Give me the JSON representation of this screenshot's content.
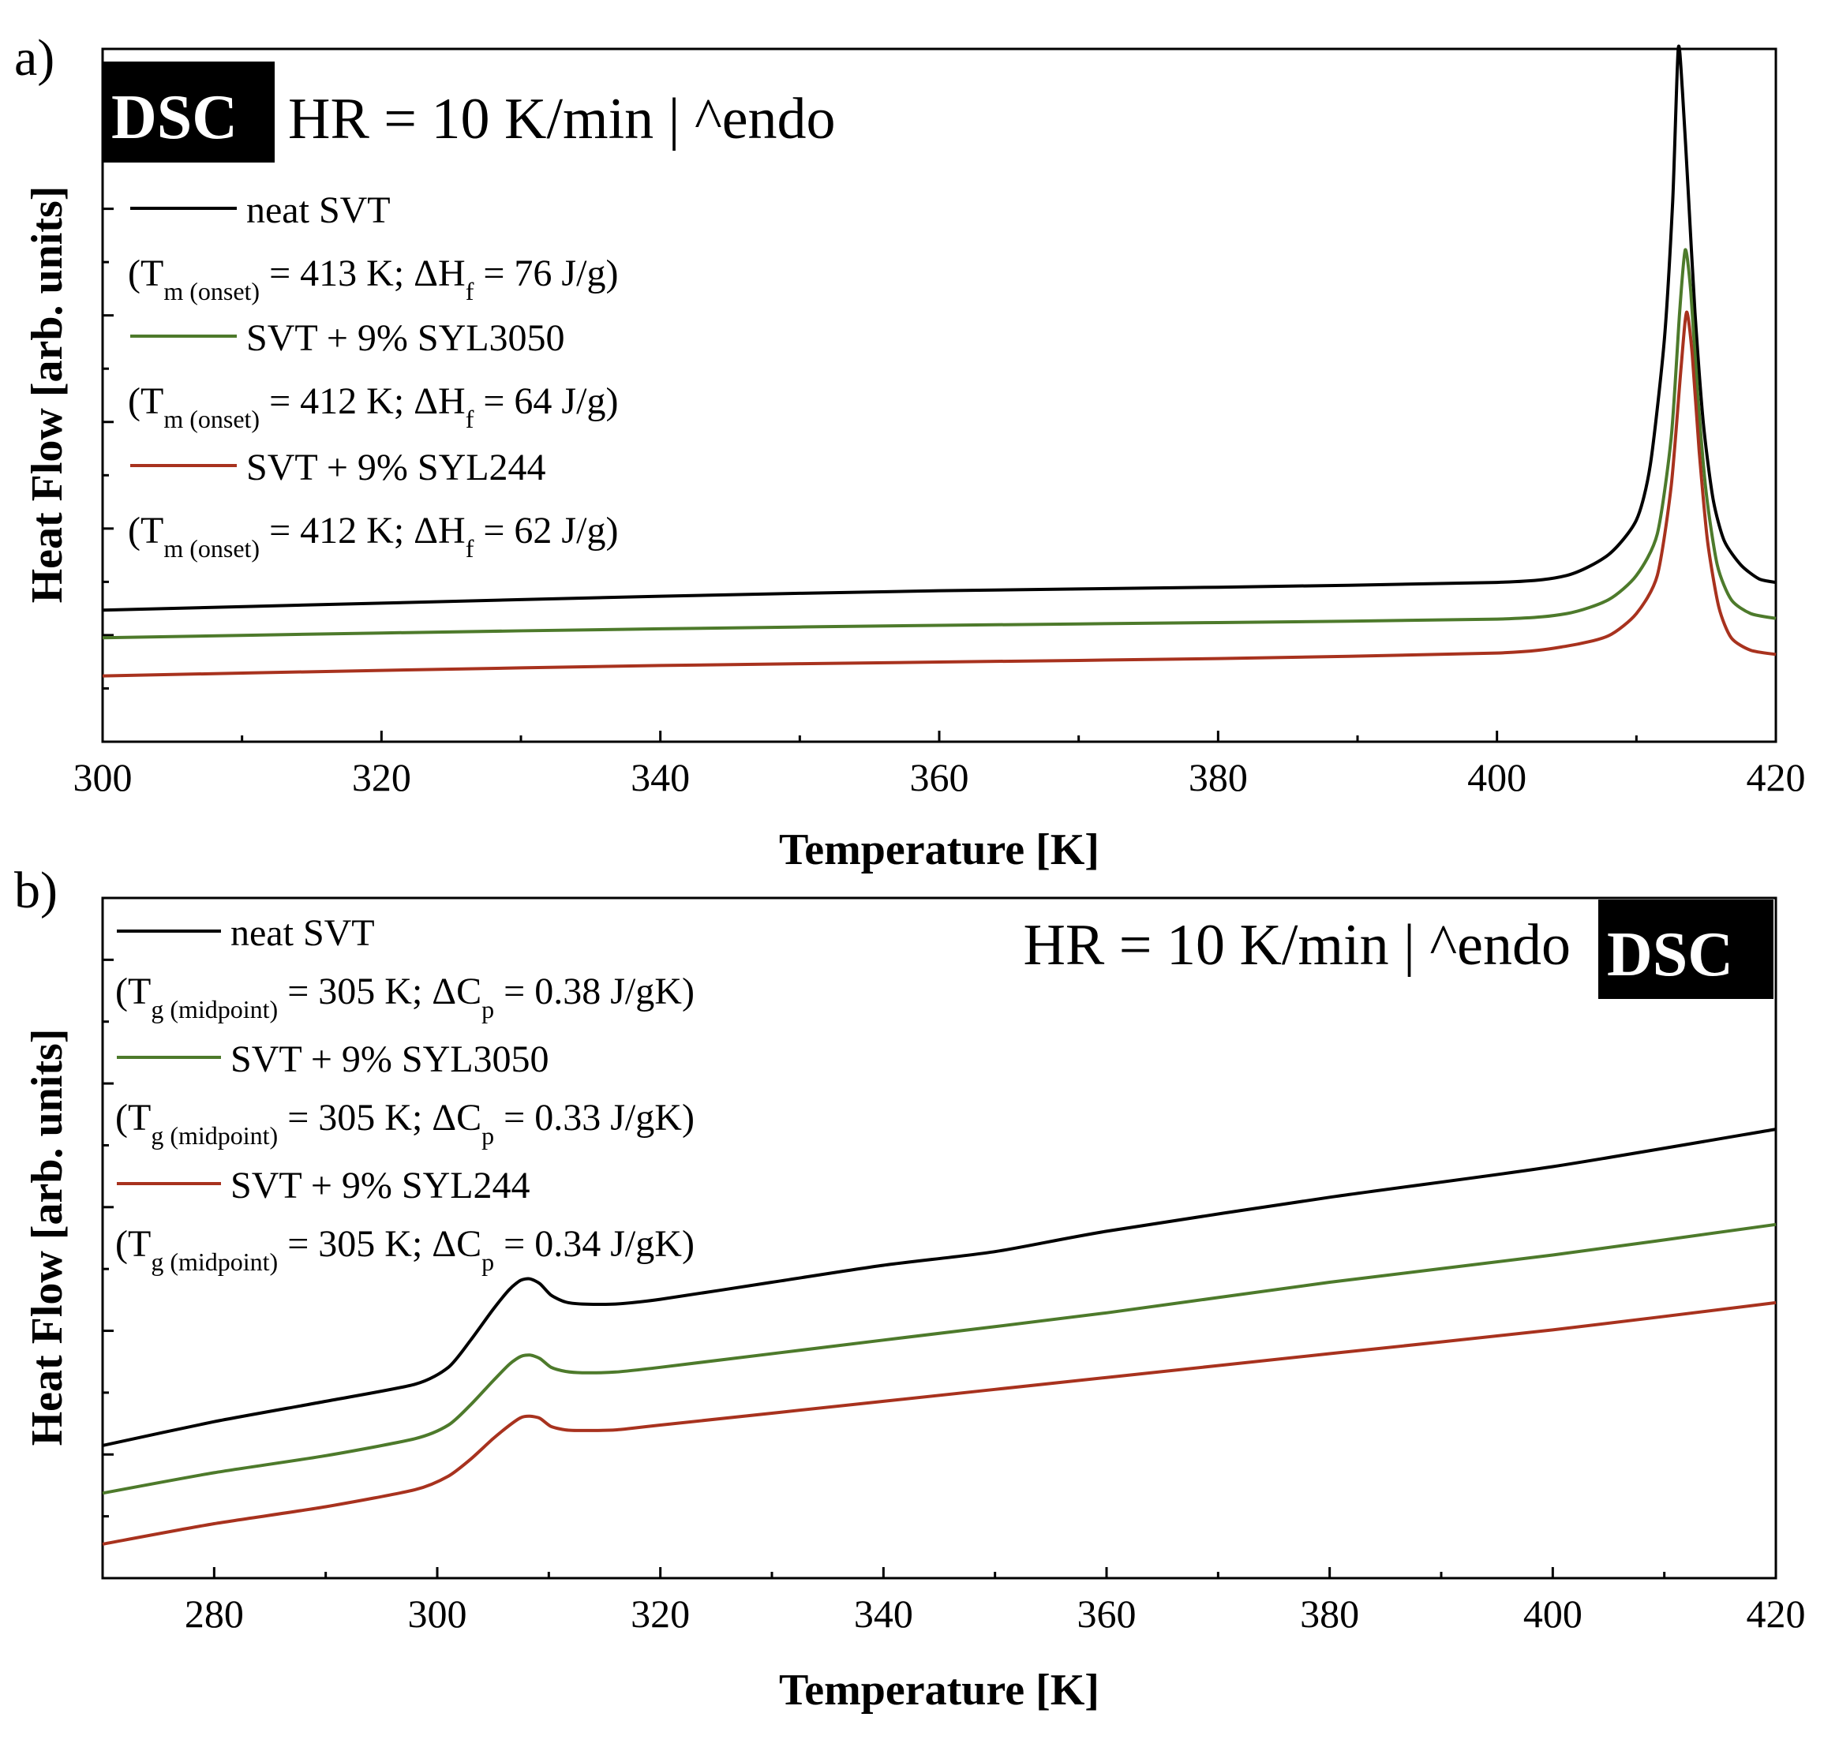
{
  "colors": {
    "neat": "#000000",
    "syl3050": "#4d7a2b",
    "syl244": "#a8321e",
    "axis": "#000000",
    "badge_bg": "#000000",
    "badge_text": "#ffffff"
  },
  "chart_data": [
    {
      "type": "line",
      "panel_label": "a)",
      "badge": "DSC",
      "annotation": "HR = 10 K/min | ^endo",
      "xlabel": "Temperature [K]",
      "ylabel": "Heat Flow [arb. units]",
      "xlim": [
        300,
        420
      ],
      "ylim": [
        0,
        100
      ],
      "xticks": [
        300,
        320,
        340,
        360,
        380,
        400,
        420
      ],
      "xtick_labels": [
        "300",
        "320",
        "340",
        "360",
        "380",
        "400",
        "420"
      ],
      "grid": false,
      "series": [
        {
          "name": "neat SVT",
          "color_key": "neat",
          "note": {
            "symbol": "T",
            "sub": "m (onset)",
            "temp": "413 K",
            "prop_symbol": "ΔH",
            "prop_sub": "f",
            "prop_value": "76 J/g"
          },
          "x": [
            300,
            320,
            340,
            360,
            380,
            400,
            405,
            408,
            410,
            411,
            412,
            412.6,
            413,
            413.3,
            413.7,
            414.2,
            414.8,
            415.5,
            416.3,
            417.5,
            418.8,
            420
          ],
          "y": [
            19,
            20,
            21,
            21.8,
            22.3,
            23,
            24,
            27,
            32,
            40,
            58,
            78,
            100,
            94,
            80,
            62,
            46,
            35,
            29,
            25.5,
            23.5,
            23
          ]
        },
        {
          "name": "SVT + 9% SYL3050",
          "color_key": "syl3050",
          "note": {
            "symbol": "T",
            "sub": "m (onset)",
            "temp": "412 K",
            "prop_symbol": "ΔH",
            "prop_sub": "f",
            "prop_value": "64 J/g"
          },
          "x": [
            300,
            320,
            340,
            360,
            380,
            400,
            405,
            408,
            410,
            411.5,
            412.5,
            413.1,
            413.5,
            413.9,
            414.4,
            415,
            415.8,
            416.8,
            418.2,
            420
          ],
          "y": [
            15,
            15.7,
            16.3,
            16.8,
            17.2,
            17.7,
            18.5,
            20.5,
            24,
            30,
            44,
            62,
            71,
            65,
            50,
            36,
            25.5,
            20.5,
            18.5,
            17.8
          ]
        },
        {
          "name": "SVT + 9% SYL244",
          "color_key": "syl244",
          "note": {
            "symbol": "T",
            "sub": "m (onset)",
            "temp": "412 K",
            "prop_symbol": "ΔH",
            "prop_sub": "f",
            "prop_value": "62 J/g"
          },
          "x": [
            300,
            320,
            340,
            360,
            380,
            400,
            405,
            408,
            410,
            411.5,
            412.5,
            413.2,
            413.6,
            414,
            414.5,
            415.1,
            415.9,
            416.8,
            418.2,
            420
          ],
          "y": [
            9.5,
            10.3,
            11,
            11.5,
            12,
            12.8,
            13.8,
            15.3,
            18.5,
            24,
            37,
            54,
            62,
            56,
            42,
            29,
            19.5,
            15,
            13.2,
            12.6
          ]
        }
      ]
    },
    {
      "type": "line",
      "panel_label": "b)",
      "badge": "DSC",
      "annotation": "HR = 10 K/min | ^endo",
      "xlabel": "Temperature [K]",
      "ylabel": "Heat Flow [arb. units]",
      "xlim": [
        270,
        420
      ],
      "ylim": [
        0,
        100
      ],
      "xticks": [
        280,
        300,
        320,
        340,
        360,
        380,
        400,
        420
      ],
      "xtick_labels": [
        "280",
        "300",
        "320",
        "340",
        "360",
        "380",
        "400",
        "420"
      ],
      "grid": false,
      "series": [
        {
          "name": "neat SVT",
          "color_key": "neat",
          "note": {
            "symbol": "T",
            "sub": "g (midpoint)",
            "temp": "305 K",
            "prop_symbol": "ΔC",
            "prop_sub": "p",
            "prop_value": "0.38 J/gK"
          },
          "x": [
            270,
            280,
            290,
            298,
            301,
            303,
            305,
            306.5,
            307.5,
            308.3,
            309.2,
            310.2,
            311.5,
            313,
            316,
            320,
            330,
            340,
            350,
            360,
            380,
            400,
            420
          ],
          "y": [
            19.5,
            23,
            26,
            28.5,
            31,
            35,
            39.5,
            42.5,
            43.8,
            44,
            43.3,
            41.6,
            40.6,
            40.3,
            40.3,
            41,
            43.5,
            46,
            48,
            51,
            56,
            60.5,
            66
          ]
        },
        {
          "name": "SVT + 9% SYL3050",
          "color_key": "syl3050",
          "note": {
            "symbol": "T",
            "sub": "g (midpoint)",
            "temp": "305 K",
            "prop_symbol": "ΔC",
            "prop_sub": "p",
            "prop_value": "0.33 J/gK"
          },
          "x": [
            270,
            280,
            290,
            298,
            301,
            303,
            305,
            306.5,
            307.5,
            308.3,
            309.2,
            310.2,
            311.5,
            313,
            316,
            320,
            340,
            360,
            380,
            400,
            420
          ],
          "y": [
            12.5,
            15.5,
            18,
            20.5,
            22.5,
            25.5,
            29,
            31.5,
            32.6,
            32.8,
            32.3,
            31,
            30.4,
            30.2,
            30.3,
            31,
            35,
            39,
            43.5,
            47.5,
            52
          ]
        },
        {
          "name": "SVT + 9% SYL244",
          "color_key": "syl244",
          "note": {
            "symbol": "T",
            "sub": "g (midpoint)",
            "temp": "305 K",
            "prop_symbol": "ΔC",
            "prop_sub": "p",
            "prop_value": "0.34 J/gK"
          },
          "x": [
            270,
            280,
            290,
            298,
            301,
            303,
            305,
            306.5,
            307.5,
            308.3,
            309.2,
            310.2,
            311.5,
            313,
            316,
            320,
            340,
            360,
            380,
            400,
            420
          ],
          "y": [
            5,
            8,
            10.5,
            13,
            15,
            17.5,
            20.5,
            22.5,
            23.6,
            23.8,
            23.5,
            22.3,
            21.8,
            21.7,
            21.8,
            22.5,
            26,
            29.5,
            33,
            36.5,
            40.5
          ]
        }
      ]
    }
  ]
}
